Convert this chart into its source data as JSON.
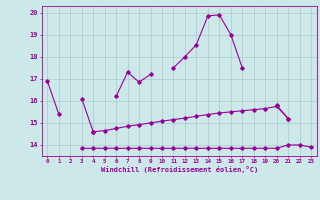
{
  "x": [
    0,
    1,
    2,
    3,
    4,
    5,
    6,
    7,
    8,
    9,
    10,
    11,
    12,
    13,
    14,
    15,
    16,
    17,
    18,
    19,
    20,
    21,
    22,
    23
  ],
  "c1_y": [
    16.9,
    15.4,
    null,
    16.1,
    14.6,
    null,
    16.2,
    17.3,
    16.85,
    17.2,
    null,
    17.5,
    18.0,
    18.55,
    19.85,
    19.9,
    19.0,
    17.5,
    null,
    null,
    15.8,
    15.2,
    null,
    null
  ],
  "c2_y": [
    null,
    null,
    null,
    null,
    14.6,
    14.65,
    14.75,
    14.85,
    14.92,
    15.0,
    15.08,
    15.15,
    15.22,
    15.3,
    15.38,
    15.45,
    15.5,
    15.55,
    15.6,
    15.65,
    15.75,
    15.2,
    null,
    null
  ],
  "c3_y": [
    null,
    null,
    null,
    13.85,
    13.85,
    13.85,
    13.85,
    13.85,
    13.85,
    13.85,
    13.85,
    13.85,
    13.85,
    13.85,
    13.85,
    13.85,
    13.85,
    13.85,
    13.85,
    13.85,
    13.85,
    14.0,
    14.0,
    13.9
  ],
  "ylim": [
    13.5,
    20.3
  ],
  "yticks": [
    14,
    15,
    16,
    17,
    18,
    19,
    20
  ],
  "xticks": [
    0,
    1,
    2,
    3,
    4,
    5,
    6,
    7,
    8,
    9,
    10,
    11,
    12,
    13,
    14,
    15,
    16,
    17,
    18,
    19,
    20,
    21,
    22,
    23
  ],
  "xlabel": "Windchill (Refroidissement éolien,°C)",
  "line_color": "#990099",
  "bg_color": "#cce8e8",
  "grid_color": "#aacccc",
  "figsize": [
    3.2,
    2.0
  ],
  "dpi": 100
}
